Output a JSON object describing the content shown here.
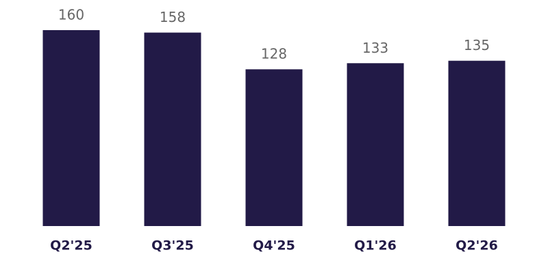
{
  "chart_data": {
    "type": "bar",
    "categories": [
      "Q2'25",
      "Q3'25",
      "Q4'25",
      "Q1'26",
      "Q2'26"
    ],
    "values": [
      160,
      158,
      128,
      133,
      135
    ],
    "color": "#221a47",
    "ylim": [
      0,
      160
    ]
  }
}
